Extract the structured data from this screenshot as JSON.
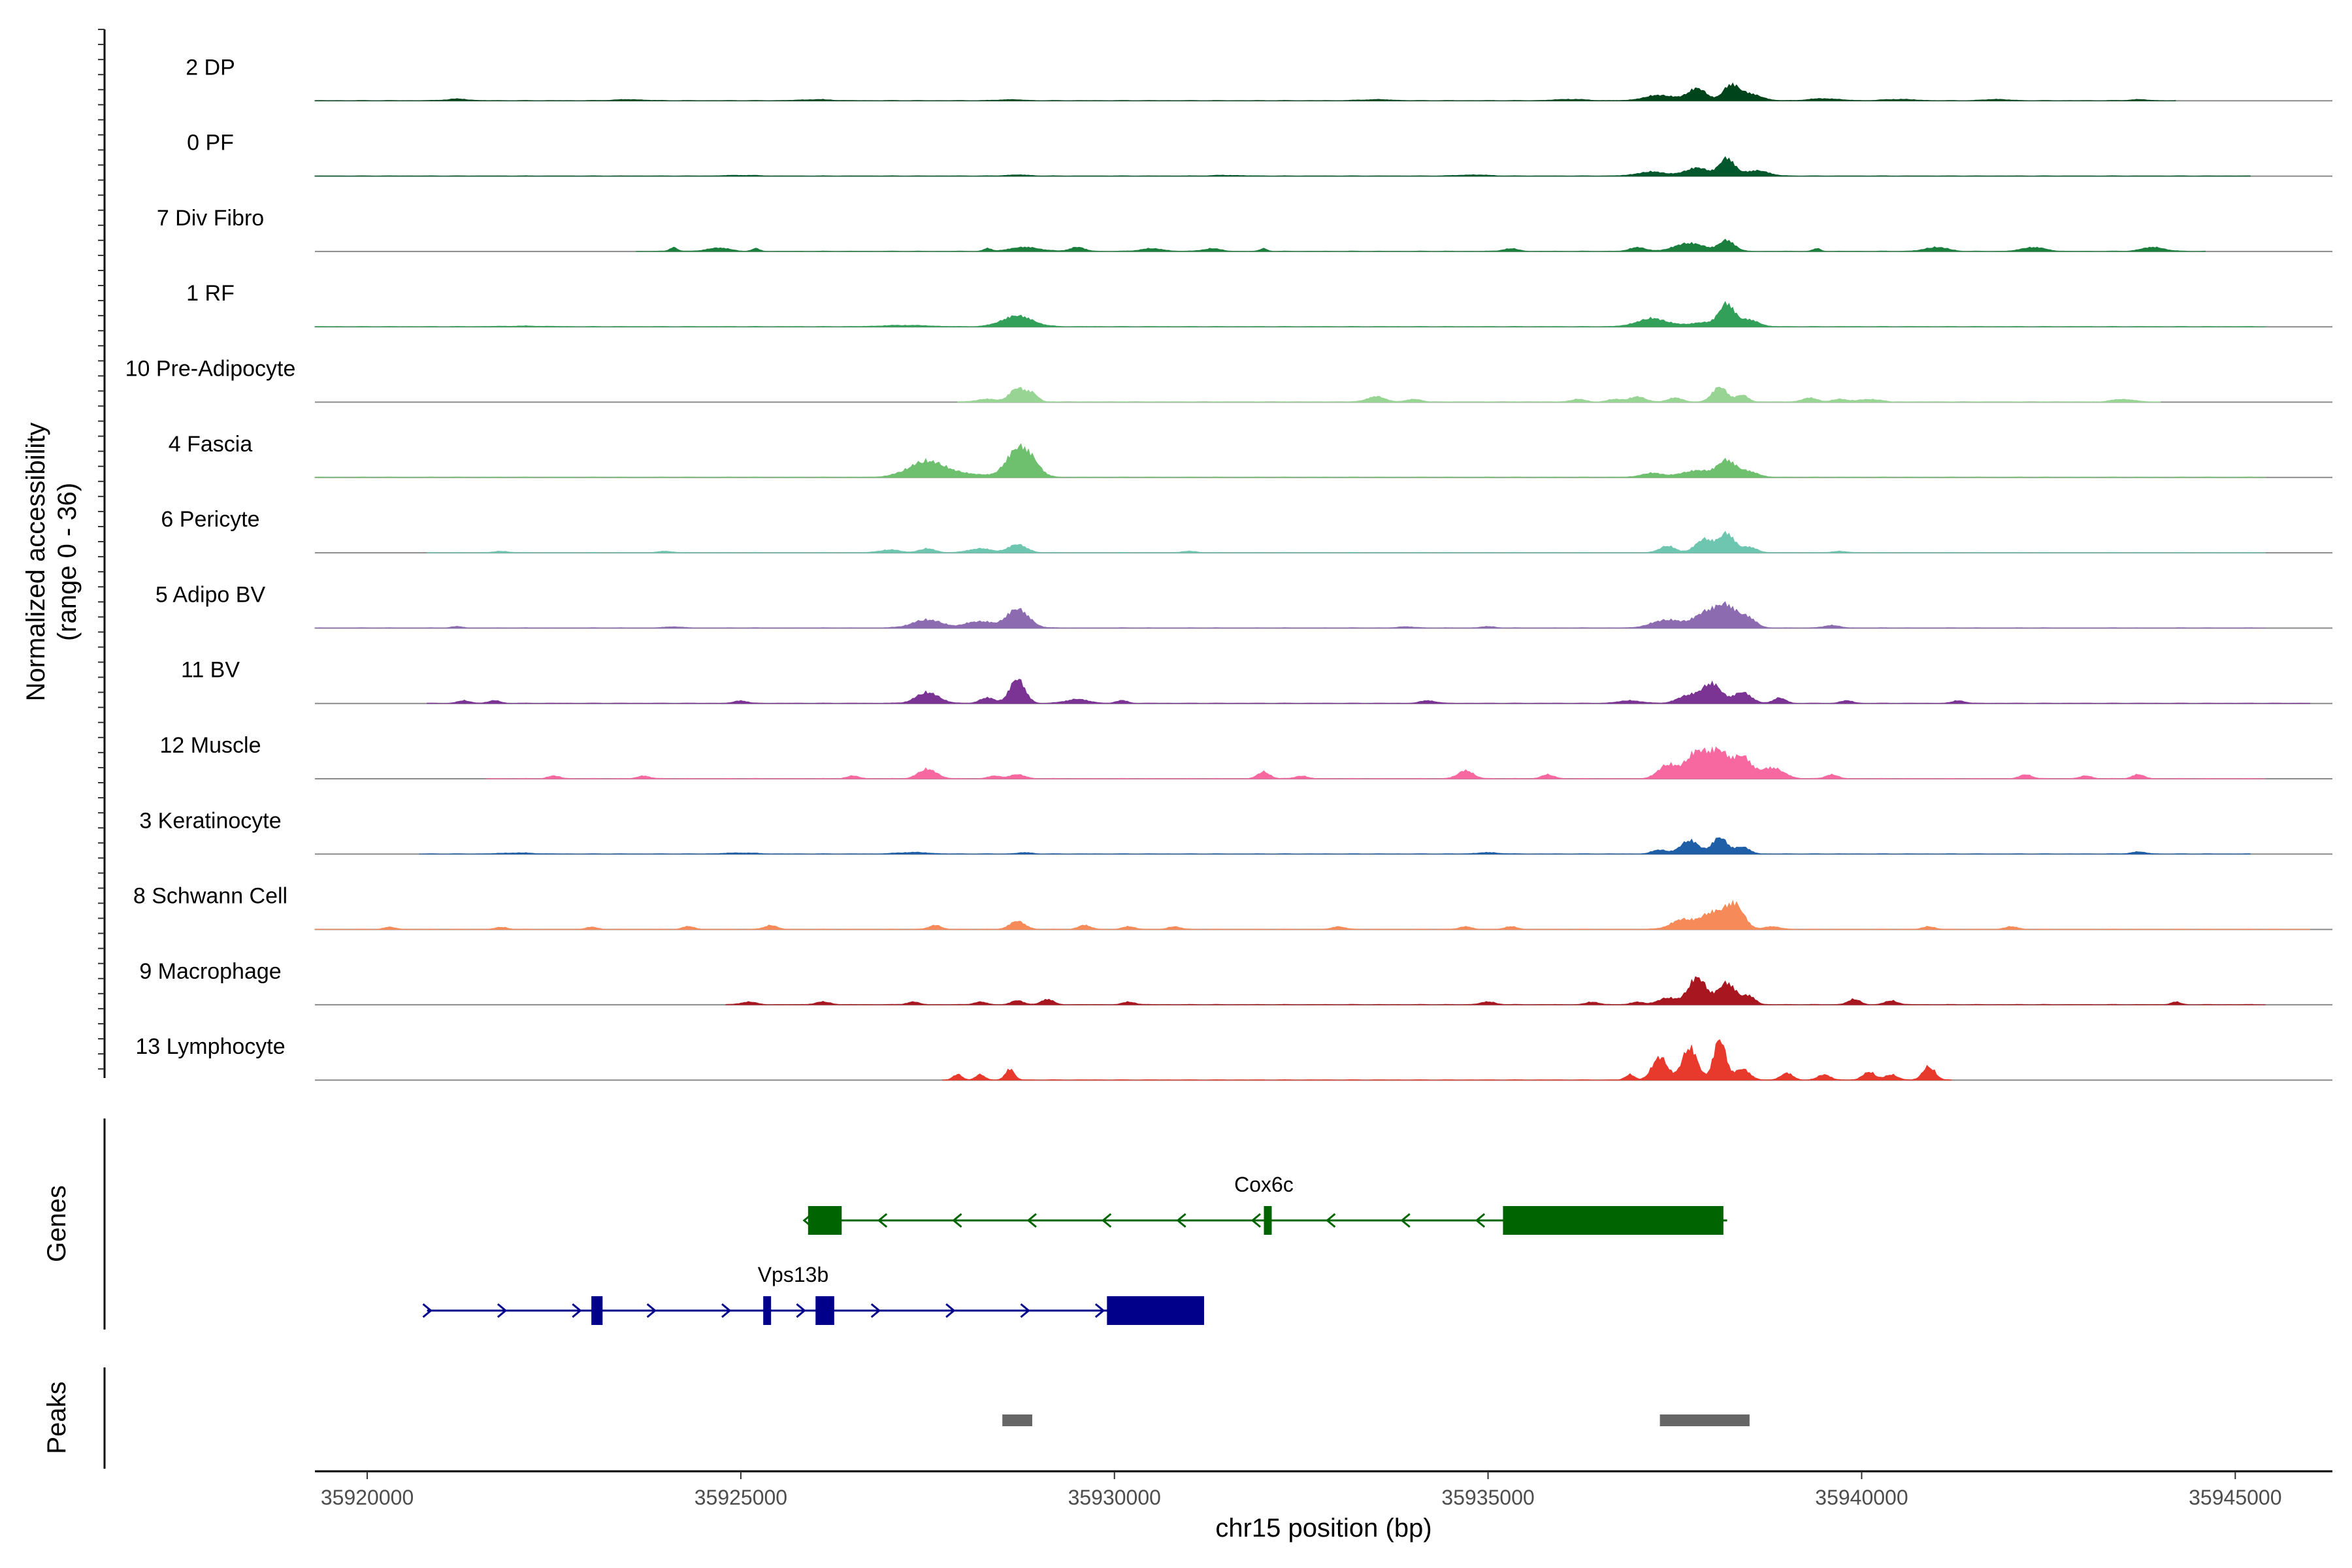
{
  "chart_data": {
    "type": "area",
    "title": "",
    "xlabel": "chr15 position (bp)",
    "ylabel_line1": "Normalized accessibility",
    "ylabel_line2": "(range 0 - 36)",
    "xlim": [
      35919300,
      35946300
    ],
    "ylim": [
      0,
      36
    ],
    "x_ticks": [
      {
        "value": 35920000,
        "label": "35920000"
      },
      {
        "value": 35925000,
        "label": "35925000"
      },
      {
        "value": 35930000,
        "label": "35930000"
      },
      {
        "value": 35935000,
        "label": "35935000"
      },
      {
        "value": 35940000,
        "label": "35940000"
      },
      {
        "value": 35945000,
        "label": "35945000"
      }
    ],
    "series": [
      {
        "name": "2 DP",
        "color": "#00441b",
        "start": 35919300,
        "end": 35944200,
        "peaks": [
          [
            35921200,
            150,
            1.2
          ],
          [
            35923500,
            200,
            0.8
          ],
          [
            35926000,
            200,
            0.8
          ],
          [
            35928600,
            150,
            0.8
          ],
          [
            35933500,
            200,
            0.8
          ],
          [
            35936100,
            200,
            1.0
          ],
          [
            35937300,
            200,
            4
          ],
          [
            35937800,
            120,
            9
          ],
          [
            35938250,
            100,
            11
          ],
          [
            35938500,
            150,
            5
          ],
          [
            35939500,
            200,
            1.5
          ],
          [
            35940500,
            200,
            1.0
          ],
          [
            35941800,
            150,
            1.0
          ],
          [
            35943700,
            120,
            0.8
          ]
        ]
      },
      {
        "name": "0 PF",
        "color": "#00582c",
        "start": 35919300,
        "end": 35945200,
        "peaks": [
          [
            35925000,
            200,
            0.5
          ],
          [
            35928700,
            150,
            0.8
          ],
          [
            35931500,
            200,
            0.5
          ],
          [
            35934800,
            200,
            0.8
          ],
          [
            35937200,
            200,
            3
          ],
          [
            35937800,
            150,
            6
          ],
          [
            35938200,
            100,
            13
          ],
          [
            35938600,
            150,
            4
          ]
        ]
      },
      {
        "name": "7 Div Fibro",
        "color": "#1a7f3c",
        "start": 35923600,
        "end": 35944600,
        "peaks": [
          [
            35924100,
            50,
            3
          ],
          [
            35924700,
            150,
            2.5
          ],
          [
            35925200,
            50,
            2
          ],
          [
            35928300,
            50,
            2
          ],
          [
            35928800,
            200,
            3
          ],
          [
            35929500,
            100,
            3
          ],
          [
            35930500,
            150,
            2
          ],
          [
            35931300,
            120,
            2
          ],
          [
            35932000,
            50,
            2
          ],
          [
            35935300,
            100,
            2
          ],
          [
            35937000,
            100,
            3
          ],
          [
            35937700,
            200,
            6
          ],
          [
            35938200,
            100,
            8
          ],
          [
            35939400,
            50,
            2
          ],
          [
            35941000,
            150,
            3
          ],
          [
            35942300,
            150,
            3
          ],
          [
            35943900,
            150,
            3
          ]
        ]
      },
      {
        "name": "1 RF",
        "color": "#33a059",
        "start": 35919300,
        "end": 35945400,
        "peaks": [
          [
            35922100,
            300,
            0.4
          ],
          [
            35927200,
            300,
            1
          ],
          [
            35928700,
            200,
            8
          ],
          [
            35937200,
            200,
            6
          ],
          [
            35937900,
            200,
            3
          ],
          [
            35938200,
            100,
            16
          ],
          [
            35938500,
            120,
            5
          ]
        ]
      },
      {
        "name": "10 Pre-Adipocyte",
        "color": "#98d594",
        "start": 35927900,
        "end": 35944000,
        "peaks": [
          [
            35928300,
            150,
            2
          ],
          [
            35928700,
            100,
            10
          ],
          [
            35928900,
            80,
            6
          ],
          [
            35933500,
            120,
            4
          ],
          [
            35934000,
            100,
            2
          ],
          [
            35936200,
            100,
            2
          ],
          [
            35936700,
            100,
            2
          ],
          [
            35937000,
            100,
            4
          ],
          [
            35937500,
            100,
            3
          ],
          [
            35938100,
            100,
            11
          ],
          [
            35938400,
            80,
            5
          ],
          [
            35939300,
            100,
            3
          ],
          [
            35939700,
            100,
            2
          ],
          [
            35940100,
            150,
            2
          ],
          [
            35943500,
            150,
            2
          ]
        ]
      },
      {
        "name": "4 Fascia",
        "color": "#6fc06e",
        "start": 35919300,
        "end": 35945400,
        "peaks": [
          [
            35927500,
            250,
            12
          ],
          [
            35928100,
            200,
            2
          ],
          [
            35928700,
            150,
            20
          ],
          [
            35928900,
            120,
            8
          ],
          [
            35937200,
            150,
            3
          ],
          [
            35937800,
            200,
            5
          ],
          [
            35938200,
            120,
            12
          ],
          [
            35938500,
            120,
            4
          ]
        ]
      },
      {
        "name": "6 Pericyte",
        "color": "#6fc6b0",
        "start": 35920800,
        "end": 35945400,
        "peaks": [
          [
            35921800,
            100,
            1
          ],
          [
            35924000,
            100,
            1
          ],
          [
            35927000,
            150,
            2
          ],
          [
            35927500,
            100,
            3
          ],
          [
            35928200,
            150,
            3
          ],
          [
            35928700,
            120,
            6
          ],
          [
            35931000,
            100,
            1
          ],
          [
            35937400,
            100,
            5
          ],
          [
            35937900,
            120,
            10
          ],
          [
            35938200,
            100,
            14
          ],
          [
            35938500,
            100,
            4
          ],
          [
            35939700,
            100,
            1
          ]
        ]
      },
      {
        "name": "5 Adipo BV",
        "color": "#8c6bb1",
        "start": 35919300,
        "end": 35945400,
        "peaks": [
          [
            35921200,
            80,
            1
          ],
          [
            35924100,
            100,
            1
          ],
          [
            35927500,
            200,
            6
          ],
          [
            35928100,
            120,
            4
          ],
          [
            35928700,
            150,
            14
          ],
          [
            35928300,
            100,
            3
          ],
          [
            35933900,
            100,
            1
          ],
          [
            35935000,
            100,
            1
          ],
          [
            35937400,
            200,
            6
          ],
          [
            35937900,
            150,
            10
          ],
          [
            35938200,
            150,
            16
          ],
          [
            35938500,
            100,
            6
          ],
          [
            35939600,
            100,
            2
          ]
        ]
      },
      {
        "name": "11 BV",
        "color": "#7b3394",
        "start": 35920800,
        "end": 35946000,
        "peaks": [
          [
            35921300,
            80,
            2
          ],
          [
            35921700,
            80,
            2
          ],
          [
            35925000,
            80,
            2
          ],
          [
            35927500,
            150,
            8
          ],
          [
            35928300,
            100,
            4
          ],
          [
            35928700,
            100,
            18
          ],
          [
            35929500,
            150,
            3
          ],
          [
            35930100,
            80,
            2
          ],
          [
            35934200,
            100,
            2
          ],
          [
            35936900,
            150,
            2
          ],
          [
            35937700,
            150,
            6
          ],
          [
            35938000,
            120,
            14
          ],
          [
            35938400,
            120,
            8
          ],
          [
            35938900,
            80,
            4
          ],
          [
            35939800,
            80,
            2
          ],
          [
            35941300,
            80,
            2
          ]
        ]
      },
      {
        "name": "12 Muscle",
        "color": "#f768a1",
        "start": 35921600,
        "end": 35945400,
        "peaks": [
          [
            35922500,
            80,
            2
          ],
          [
            35923700,
            80,
            2
          ],
          [
            35926500,
            80,
            2
          ],
          [
            35927500,
            120,
            7
          ],
          [
            35928400,
            80,
            2
          ],
          [
            35928700,
            100,
            3
          ],
          [
            35932000,
            80,
            5
          ],
          [
            35932500,
            80,
            2
          ],
          [
            35934700,
            100,
            6
          ],
          [
            35935800,
            80,
            3
          ],
          [
            35937400,
            120,
            10
          ],
          [
            35937800,
            150,
            20
          ],
          [
            35938100,
            120,
            18
          ],
          [
            35938400,
            120,
            16
          ],
          [
            35938800,
            150,
            8
          ],
          [
            35939600,
            80,
            3
          ],
          [
            35942200,
            80,
            3
          ],
          [
            35943000,
            80,
            2
          ],
          [
            35943700,
            80,
            3
          ]
        ]
      },
      {
        "name": "3 Keratinocyte",
        "color": "#1f5fa8",
        "start": 35920700,
        "end": 35945200,
        "peaks": [
          [
            35922000,
            200,
            0.8
          ],
          [
            35925000,
            200,
            0.8
          ],
          [
            35927300,
            200,
            1.2
          ],
          [
            35928800,
            100,
            1.0
          ],
          [
            35935000,
            150,
            1.0
          ],
          [
            35937300,
            100,
            3
          ],
          [
            35937700,
            120,
            10
          ],
          [
            35938100,
            100,
            12
          ],
          [
            35938400,
            100,
            5
          ],
          [
            35943700,
            100,
            1.5
          ]
        ]
      },
      {
        "name": "8 Schwann Cell",
        "color": "#f68a58",
        "start": 35919300,
        "end": 35946000,
        "peaks": [
          [
            35920300,
            80,
            1.5
          ],
          [
            35921800,
            80,
            1.5
          ],
          [
            35923000,
            80,
            1.5
          ],
          [
            35924300,
            80,
            2
          ],
          [
            35925400,
            80,
            3
          ],
          [
            35927600,
            80,
            3
          ],
          [
            35928700,
            100,
            6
          ],
          [
            35929600,
            80,
            3
          ],
          [
            35930200,
            80,
            2
          ],
          [
            35930800,
            80,
            2
          ],
          [
            35933000,
            80,
            2
          ],
          [
            35934700,
            80,
            2
          ],
          [
            35935300,
            80,
            2
          ],
          [
            35937600,
            150,
            7
          ],
          [
            35938000,
            150,
            12
          ],
          [
            35938300,
            120,
            18
          ],
          [
            35938800,
            100,
            2
          ],
          [
            35940900,
            80,
            2
          ],
          [
            35942000,
            80,
            2
          ]
        ]
      },
      {
        "name": "9 Macrophage",
        "color": "#a8161f",
        "start": 35924800,
        "end": 35945400,
        "peaks": [
          [
            35925100,
            100,
            2
          ],
          [
            35926100,
            100,
            2
          ],
          [
            35927300,
            80,
            2
          ],
          [
            35928200,
            80,
            2
          ],
          [
            35928700,
            80,
            3
          ],
          [
            35929100,
            80,
            4
          ],
          [
            35930200,
            80,
            2
          ],
          [
            35935000,
            100,
            2
          ],
          [
            35936400,
            80,
            2
          ],
          [
            35937000,
            80,
            2
          ],
          [
            35937400,
            120,
            5
          ],
          [
            35937800,
            120,
            20
          ],
          [
            35938200,
            120,
            16
          ],
          [
            35938500,
            80,
            6
          ],
          [
            35939900,
            80,
            4
          ],
          [
            35940400,
            80,
            3
          ],
          [
            35944200,
            60,
            2
          ]
        ]
      },
      {
        "name": "13 Lymphocyte",
        "color": "#e8392d",
        "start": 35927700,
        "end": 35941200,
        "peaks": [
          [
            35927900,
            60,
            4
          ],
          [
            35928200,
            60,
            4
          ],
          [
            35928600,
            60,
            8
          ],
          [
            35936900,
            60,
            4
          ],
          [
            35937300,
            100,
            17
          ],
          [
            35937700,
            100,
            24
          ],
          [
            35938100,
            80,
            30
          ],
          [
            35938400,
            100,
            8
          ],
          [
            35939000,
            80,
            5
          ],
          [
            35939500,
            80,
            4
          ],
          [
            35940100,
            80,
            6
          ],
          [
            35940400,
            80,
            4
          ],
          [
            35940900,
            80,
            10
          ]
        ]
      }
    ],
    "genes": [
      {
        "name": "Cox6c",
        "strand": "-",
        "color": "#006400",
        "start": 35925900,
        "end": 35938200,
        "label_x": 35932000,
        "exons": [
          [
            35925900,
            35926350
          ],
          [
            35932000,
            35932100
          ],
          [
            35935200,
            35938150
          ]
        ]
      },
      {
        "name": "Vps13b",
        "strand": "+",
        "color": "#00008b",
        "start": 35920800,
        "end": 35931200,
        "label_x": 35925700,
        "exons": [
          [
            35923000,
            35923150
          ],
          [
            35925300,
            35925400
          ],
          [
            35926000,
            35926250
          ],
          [
            35929900,
            35931200
          ]
        ]
      }
    ],
    "peaks": [
      [
        35928500,
        35928900
      ],
      [
        35937300,
        35938500
      ]
    ],
    "panel_titles": {
      "genes": "Genes",
      "peaks": "Peaks"
    }
  }
}
